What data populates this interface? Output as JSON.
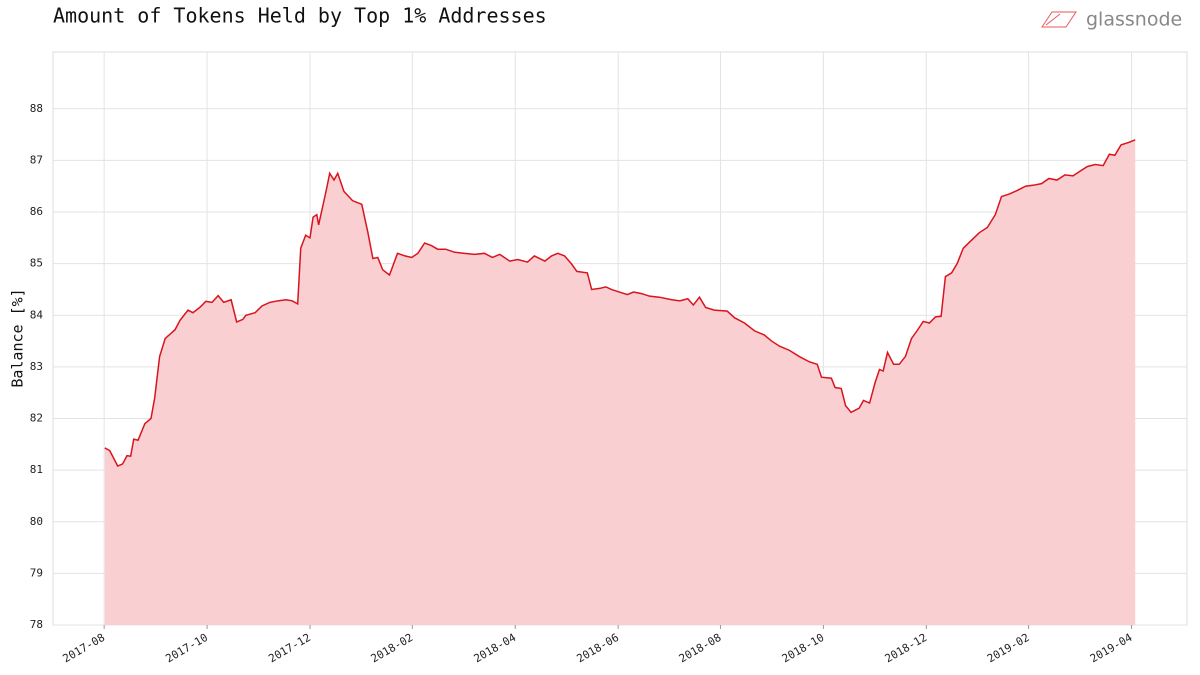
{
  "chart_data": {
    "type": "area",
    "title": "Amount of Tokens Held by Top 1% Addresses",
    "brand": "glassnode",
    "y_label": "Balance [%]",
    "grid": true,
    "xlim": [
      2017.5,
      2019.34
    ],
    "ylim": [
      78,
      89.1
    ],
    "yticks": [
      78,
      79,
      80,
      81,
      82,
      83,
      84,
      85,
      86,
      87,
      88
    ],
    "xticks": [
      {
        "value": 2017.583,
        "label": "2017-08"
      },
      {
        "value": 2017.75,
        "label": "2017-10"
      },
      {
        "value": 2017.917,
        "label": "2017-12"
      },
      {
        "value": 2018.083,
        "label": "2018-02"
      },
      {
        "value": 2018.25,
        "label": "2018-04"
      },
      {
        "value": 2018.417,
        "label": "2018-06"
      },
      {
        "value": 2018.583,
        "label": "2018-08"
      },
      {
        "value": 2018.75,
        "label": "2018-10"
      },
      {
        "value": 2018.917,
        "label": "2018-12"
      },
      {
        "value": 2019.083,
        "label": "2019-02"
      },
      {
        "value": 2019.25,
        "label": "2019-04"
      }
    ],
    "color": "#d9141e",
    "fill": "#f9cfd2",
    "x": [
      2017.584,
      2017.592,
      2017.605,
      2017.613,
      2017.62,
      2017.626,
      2017.631,
      2017.638,
      2017.649,
      2017.659,
      2017.665,
      2017.673,
      2017.682,
      2017.698,
      2017.706,
      2017.719,
      2017.727,
      2017.738,
      2017.748,
      2017.758,
      2017.768,
      2017.777,
      2017.789,
      2017.798,
      2017.808,
      2017.813,
      2017.828,
      2017.839,
      2017.852,
      2017.865,
      2017.878,
      2017.888,
      2017.897,
      2017.902,
      2017.91,
      2017.917,
      2017.922,
      2017.928,
      2017.931,
      2017.943,
      2017.949,
      2017.956,
      2017.962,
      2017.972,
      2017.986,
      2018.001,
      2018.011,
      2018.019,
      2018.027,
      2018.035,
      2018.046,
      2018.059,
      2018.071,
      2018.082,
      2018.092,
      2018.103,
      2018.114,
      2018.124,
      2018.137,
      2018.152,
      2018.168,
      2018.184,
      2018.2,
      2018.213,
      2018.225,
      2018.241,
      2018.254,
      2018.27,
      2018.281,
      2018.298,
      2018.309,
      2018.319,
      2018.33,
      2018.341,
      2018.35,
      2018.367,
      2018.374,
      2018.387,
      2018.397,
      2018.406,
      2018.419,
      2018.432,
      2018.442,
      2018.455,
      2018.468,
      2018.484,
      2018.504,
      2018.517,
      2018.53,
      2018.539,
      2018.549,
      2018.559,
      2018.573,
      2018.594,
      2018.606,
      2018.622,
      2018.638,
      2018.654,
      2018.666,
      2018.679,
      2018.695,
      2018.711,
      2018.727,
      2018.74,
      2018.747,
      2018.763,
      2018.769,
      2018.779,
      2018.786,
      2018.795,
      2018.808,
      2018.815,
      2018.825,
      2018.834,
      2018.841,
      2018.847,
      2018.854,
      2018.864,
      2018.873,
      2018.883,
      2018.893,
      2018.902,
      2018.912,
      2018.922,
      2018.932,
      2018.941,
      2018.948,
      2018.958,
      2018.967,
      2018.977,
      2018.99,
      2019.003,
      2019.016,
      2019.029,
      2019.039,
      2019.052,
      2019.065,
      2019.078,
      2019.091,
      2019.104,
      2019.116,
      2019.129,
      2019.142,
      2019.155,
      2019.165,
      2019.178,
      2019.191,
      2019.204,
      2019.214,
      2019.223,
      2019.233,
      2019.246,
      2019.256
    ],
    "values": [
      81.43,
      81.38,
      81.08,
      81.12,
      81.28,
      81.27,
      81.6,
      81.58,
      81.9,
      82.0,
      82.4,
      83.2,
      83.55,
      83.72,
      83.9,
      84.1,
      84.05,
      84.15,
      84.27,
      84.25,
      84.38,
      84.25,
      84.3,
      83.87,
      83.92,
      84.0,
      84.05,
      84.18,
      84.25,
      84.28,
      84.3,
      84.28,
      84.22,
      85.3,
      85.55,
      85.5,
      85.9,
      85.95,
      85.75,
      86.4,
      86.75,
      86.62,
      86.75,
      86.4,
      86.22,
      86.15,
      85.6,
      85.1,
      85.12,
      84.88,
      84.78,
      85.2,
      85.15,
      85.12,
      85.2,
      85.4,
      85.35,
      85.28,
      85.28,
      85.22,
      85.2,
      85.18,
      85.2,
      85.12,
      85.18,
      85.05,
      85.08,
      85.03,
      85.15,
      85.05,
      85.15,
      85.2,
      85.15,
      85.0,
      84.85,
      84.82,
      84.5,
      84.52,
      84.55,
      84.5,
      84.45,
      84.4,
      84.45,
      84.42,
      84.37,
      84.35,
      84.3,
      84.28,
      84.32,
      84.2,
      84.35,
      84.15,
      84.1,
      84.08,
      83.95,
      83.85,
      83.7,
      83.62,
      83.5,
      83.4,
      83.32,
      83.2,
      83.1,
      83.05,
      82.8,
      82.78,
      82.6,
      82.58,
      82.25,
      82.12,
      82.2,
      82.35,
      82.3,
      82.7,
      82.95,
      82.92,
      83.28,
      83.05,
      83.05,
      83.2,
      83.55,
      83.7,
      83.88,
      83.85,
      83.97,
      83.98,
      84.75,
      84.82,
      85.0,
      85.3,
      85.45,
      85.6,
      85.7,
      85.95,
      86.3,
      86.35,
      86.42,
      86.5,
      86.52,
      86.55,
      86.65,
      86.62,
      86.72,
      86.7,
      86.78,
      86.88,
      86.92,
      86.9,
      87.12,
      87.1,
      87.3,
      87.35,
      87.4
    ]
  }
}
